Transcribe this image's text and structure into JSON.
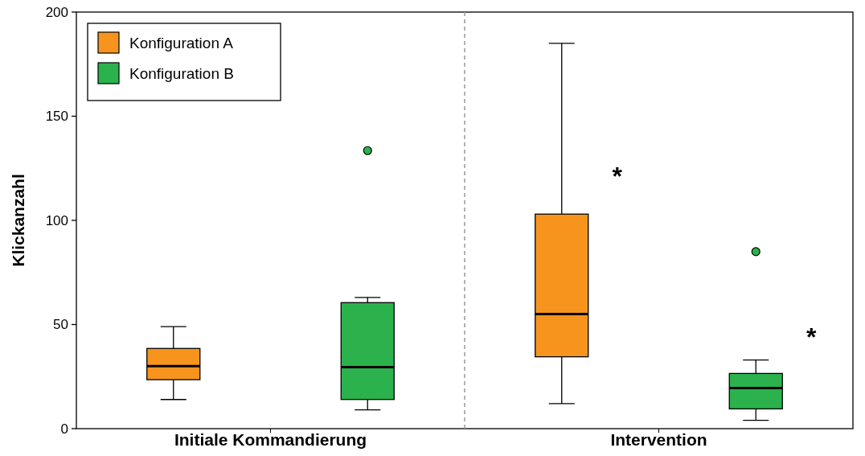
{
  "chart_data": {
    "type": "box",
    "ylabel": "Klickanzahl",
    "categories": [
      "Initiale Kommandierung",
      "Intervention"
    ],
    "ylim": [
      0,
      200
    ],
    "yticks": [
      0,
      50,
      100,
      150,
      200
    ],
    "grid": false,
    "legend": "top left",
    "series": [
      {
        "name": "Konfiguration A",
        "color": "#f7941d",
        "boxes": [
          {
            "low": 14,
            "q1": 23.5,
            "median": 30,
            "q3": 38.5,
            "high": 49
          },
          {
            "low": 12,
            "q1": 34.5,
            "median": 55,
            "q3": 103,
            "high": 185
          }
        ]
      },
      {
        "name": "Konfiguration B",
        "color": "#2bb24c",
        "boxes": [
          {
            "low": 9,
            "q1": 14,
            "median": 29.5,
            "q3": 60.5,
            "high": 63,
            "outliers": [
              133.5
            ]
          },
          {
            "low": 4,
            "q1": 9.5,
            "median": 19.5,
            "q3": 26.5,
            "high": 33,
            "outliers": [
              85
            ]
          }
        ]
      }
    ],
    "annotations": [
      "*",
      "*"
    ]
  }
}
